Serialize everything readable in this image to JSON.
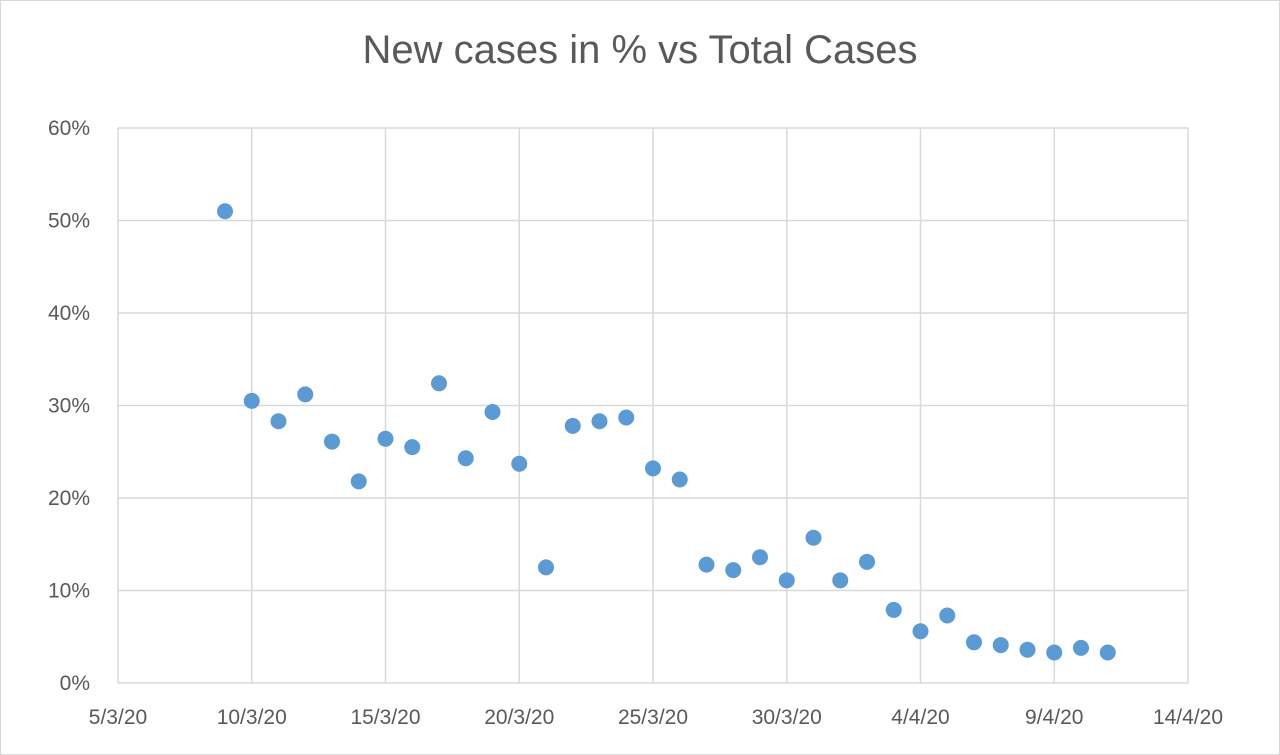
{
  "chart_data": {
    "type": "scatter",
    "title": "New cases in % vs Total Cases",
    "xlabel": "",
    "ylabel": "",
    "x_ticks": [
      "5/3/20",
      "10/3/20",
      "15/3/20",
      "20/3/20",
      "25/3/20",
      "30/3/20",
      "4/4/20",
      "9/4/20",
      "14/4/20"
    ],
    "y_ticks": [
      "0%",
      "10%",
      "20%",
      "30%",
      "40%",
      "50%",
      "60%"
    ],
    "xlim": [
      "2020-03-05",
      "2020-04-14"
    ],
    "ylim": [
      0,
      60
    ],
    "grid": true,
    "marker_color": "#5b9bd5",
    "series": [
      {
        "points": [
          {
            "x": "2020-03-09",
            "y": 51
          },
          {
            "x": "2020-03-10",
            "y": 30.5
          },
          {
            "x": "2020-03-11",
            "y": 28.3
          },
          {
            "x": "2020-03-12",
            "y": 31.2
          },
          {
            "x": "2020-03-13",
            "y": 26.1
          },
          {
            "x": "2020-03-14",
            "y": 21.8
          },
          {
            "x": "2020-03-15",
            "y": 26.4
          },
          {
            "x": "2020-03-16",
            "y": 25.5
          },
          {
            "x": "2020-03-17",
            "y": 32.4
          },
          {
            "x": "2020-03-18",
            "y": 24.3
          },
          {
            "x": "2020-03-19",
            "y": 29.3
          },
          {
            "x": "2020-03-20",
            "y": 23.7
          },
          {
            "x": "2020-03-21",
            "y": 12.5
          },
          {
            "x": "2020-03-22",
            "y": 27.8
          },
          {
            "x": "2020-03-23",
            "y": 28.3
          },
          {
            "x": "2020-03-24",
            "y": 28.7
          },
          {
            "x": "2020-03-25",
            "y": 23.2
          },
          {
            "x": "2020-03-26",
            "y": 22
          },
          {
            "x": "2020-03-27",
            "y": 12.8
          },
          {
            "x": "2020-03-28",
            "y": 12.2
          },
          {
            "x": "2020-03-29",
            "y": 13.6
          },
          {
            "x": "2020-03-30",
            "y": 11.1
          },
          {
            "x": "2020-03-31",
            "y": 15.7
          },
          {
            "x": "2020-04-01",
            "y": 11.1
          },
          {
            "x": "2020-04-02",
            "y": 13.1
          },
          {
            "x": "2020-04-03",
            "y": 7.9
          },
          {
            "x": "2020-04-04",
            "y": 5.6
          },
          {
            "x": "2020-04-05",
            "y": 7.3
          },
          {
            "x": "2020-04-06",
            "y": 4.4
          },
          {
            "x": "2020-04-07",
            "y": 4.1
          },
          {
            "x": "2020-04-08",
            "y": 3.6
          },
          {
            "x": "2020-04-09",
            "y": 3.3
          },
          {
            "x": "2020-04-10",
            "y": 3.8
          },
          {
            "x": "2020-04-11",
            "y": 3.3
          }
        ]
      }
    ]
  }
}
